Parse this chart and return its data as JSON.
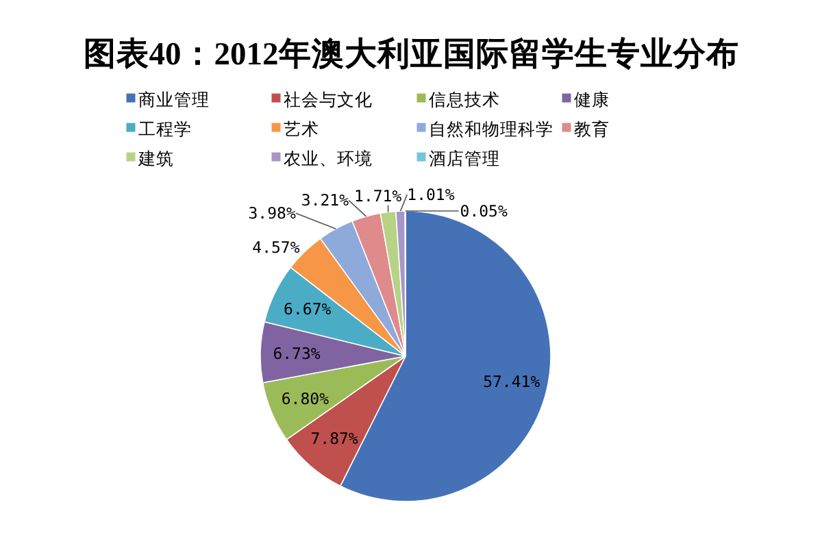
{
  "chart_data": {
    "type": "pie",
    "title": "图表40：2012年澳大利亚国际留学生专业分布",
    "categories": [
      "商业管理",
      "社会与文化",
      "信息技术",
      "健康",
      "工程学",
      "艺术",
      "自然和物理科学",
      "教育",
      "建筑",
      "农业、环境",
      "酒店管理"
    ],
    "values": [
      57.41,
      7.87,
      6.8,
      6.73,
      6.67,
      4.57,
      3.98,
      3.21,
      1.71,
      1.01,
      0.05
    ],
    "colors": [
      "#4572b7",
      "#c0504d",
      "#9bbb59",
      "#8064a2",
      "#4bacc6",
      "#f79646",
      "#8eaadb",
      "#df8a8b",
      "#b6d386",
      "#a796c8",
      "#74c6dc"
    ],
    "value_labels": [
      "57.41%",
      "7.87%",
      "6.80%",
      "6.73%",
      "6.67%",
      "4.57%",
      "3.98%",
      "3.21%",
      "1.71%",
      "1.01%",
      "0.05%"
    ],
    "legend": "top"
  }
}
